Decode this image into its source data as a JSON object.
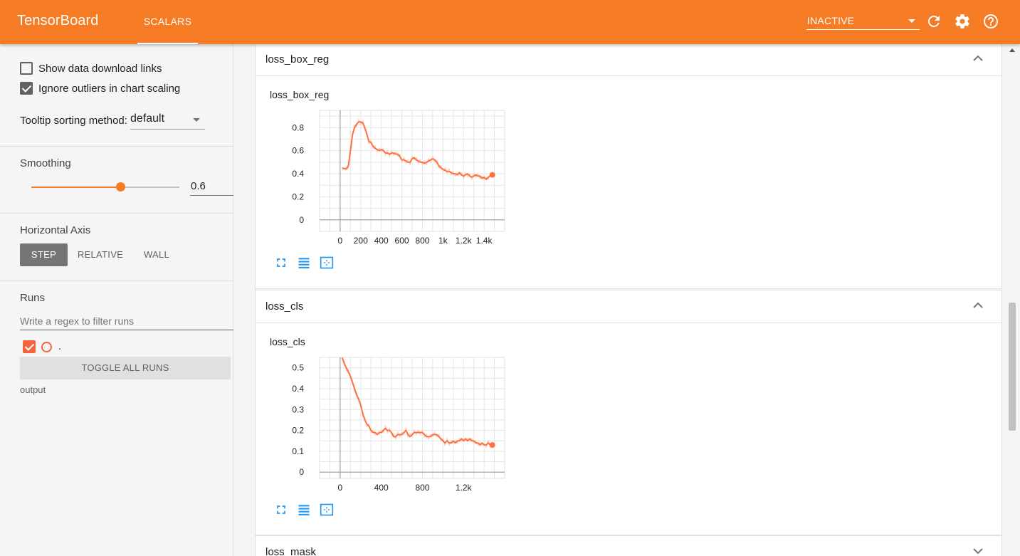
{
  "header": {
    "brand": "TensorBoard",
    "active_tab": "SCALARS",
    "status_select": "INACTIVE",
    "icons": [
      "refresh-icon",
      "gear-icon",
      "help-icon"
    ]
  },
  "sidebar": {
    "show_download_links": {
      "label": "Show data download links",
      "checked": false
    },
    "ignore_outliers": {
      "label": "Ignore outliers in chart scaling",
      "checked": true
    },
    "tooltip_sorting_label": "Tooltip sorting method:",
    "tooltip_sorting_value": "default",
    "smoothing_title": "Smoothing",
    "smoothing_value": "0.6",
    "smoothing_fraction": 0.6,
    "horizontal_axis_title": "Horizontal Axis",
    "axis_buttons": {
      "step": "STEP",
      "relative": "RELATIVE",
      "wall": "WALL"
    },
    "axis_selected": "STEP",
    "runs_title": "Runs",
    "runs_filter_placeholder": "Write a regex to filter runs",
    "run_name": ".",
    "toggle_all_label": "TOGGLE ALL RUNS",
    "output_label": "output"
  },
  "cards": [
    {
      "title": "loss_box_reg",
      "chart_title": "loss_box_reg",
      "expanded": true
    },
    {
      "title": "loss_cls",
      "chart_title": "loss_cls",
      "expanded": true
    },
    {
      "title": "loss_mask",
      "expanded": false
    }
  ],
  "colors": {
    "accent": "#f57c24",
    "series": "#ff7043",
    "raw_series": "#fbd0c3"
  },
  "chart_data": [
    {
      "type": "line",
      "title": "loss_box_reg",
      "xlim": [
        -200,
        1600
      ],
      "ylim": [
        -0.1,
        0.95
      ],
      "x_ticks": [
        0,
        200,
        400,
        600,
        800,
        1000,
        1200,
        1400
      ],
      "x_tick_labels": [
        "0",
        "200",
        "400",
        "600",
        "800",
        "1k",
        "1.2k",
        "1.4k"
      ],
      "y_ticks": [
        0,
        0.2,
        0.4,
        0.6,
        0.8
      ],
      "y_tick_labels": [
        "0",
        "0.2",
        "0.4",
        "0.6",
        "0.8"
      ],
      "grid": true,
      "series": [
        {
          "x": [
            20,
            60,
            80,
            100,
            120,
            140,
            160,
            180,
            200,
            220,
            240,
            260,
            280,
            300,
            320,
            340,
            360,
            380,
            400,
            420,
            440,
            460,
            480,
            500,
            520,
            540,
            560,
            580,
            600,
            620,
            640,
            660,
            680,
            700,
            720,
            740,
            760,
            780,
            800,
            820,
            840,
            860,
            880,
            900,
            920,
            940,
            960,
            980,
            1000,
            1020,
            1040,
            1060,
            1080,
            1100,
            1120,
            1140,
            1160,
            1180,
            1200,
            1220,
            1240,
            1260,
            1280,
            1300,
            1320,
            1340,
            1360,
            1380,
            1400,
            1420,
            1440,
            1460,
            1480
          ],
          "y": [
            0.45,
            0.44,
            0.47,
            0.6,
            0.74,
            0.8,
            0.83,
            0.85,
            0.85,
            0.84,
            0.8,
            0.74,
            0.68,
            0.67,
            0.64,
            0.62,
            0.61,
            0.6,
            0.61,
            0.6,
            0.58,
            0.58,
            0.57,
            0.58,
            0.58,
            0.57,
            0.57,
            0.55,
            0.52,
            0.52,
            0.51,
            0.5,
            0.5,
            0.53,
            0.54,
            0.52,
            0.51,
            0.5,
            0.5,
            0.49,
            0.5,
            0.51,
            0.52,
            0.53,
            0.52,
            0.5,
            0.47,
            0.45,
            0.44,
            0.43,
            0.42,
            0.42,
            0.41,
            0.4,
            0.4,
            0.39,
            0.41,
            0.39,
            0.38,
            0.39,
            0.4,
            0.38,
            0.37,
            0.38,
            0.39,
            0.38,
            0.38,
            0.36,
            0.37,
            0.35,
            0.37,
            0.38,
            0.39
          ]
        }
      ]
    },
    {
      "type": "line",
      "title": "loss_cls",
      "xlim": [
        -200,
        1600
      ],
      "ylim": [
        -0.03,
        0.55
      ],
      "x_ticks": [
        0,
        400,
        800,
        1200
      ],
      "x_tick_labels": [
        "0",
        "400",
        "800",
        "1.2k"
      ],
      "y_ticks": [
        0,
        0.1,
        0.2,
        0.3,
        0.4,
        0.5
      ],
      "y_tick_labels": [
        "0",
        "0.1",
        "0.2",
        "0.3",
        "0.4",
        "0.5"
      ],
      "grid": true,
      "series": [
        {
          "x": [
            20,
            40,
            60,
            80,
            100,
            120,
            140,
            160,
            180,
            200,
            220,
            240,
            260,
            280,
            300,
            320,
            340,
            360,
            380,
            400,
            420,
            440,
            460,
            480,
            500,
            520,
            540,
            560,
            580,
            600,
            620,
            640,
            660,
            680,
            700,
            720,
            740,
            760,
            780,
            800,
            820,
            840,
            860,
            880,
            900,
            920,
            940,
            960,
            980,
            1000,
            1020,
            1040,
            1060,
            1080,
            1100,
            1120,
            1140,
            1160,
            1180,
            1200,
            1220,
            1240,
            1260,
            1280,
            1300,
            1320,
            1340,
            1360,
            1380,
            1400,
            1420,
            1440,
            1460,
            1480
          ],
          "y": [
            0.55,
            0.52,
            0.5,
            0.48,
            0.46,
            0.43,
            0.4,
            0.37,
            0.35,
            0.32,
            0.28,
            0.25,
            0.23,
            0.22,
            0.2,
            0.19,
            0.19,
            0.18,
            0.19,
            0.19,
            0.2,
            0.21,
            0.2,
            0.2,
            0.19,
            0.17,
            0.17,
            0.18,
            0.18,
            0.18,
            0.19,
            0.2,
            0.18,
            0.17,
            0.18,
            0.19,
            0.19,
            0.19,
            0.19,
            0.19,
            0.18,
            0.17,
            0.17,
            0.17,
            0.18,
            0.18,
            0.18,
            0.17,
            0.16,
            0.15,
            0.14,
            0.15,
            0.14,
            0.14,
            0.15,
            0.14,
            0.15,
            0.15,
            0.16,
            0.15,
            0.16,
            0.15,
            0.16,
            0.15,
            0.15,
            0.14,
            0.14,
            0.13,
            0.14,
            0.13,
            0.13,
            0.14,
            0.13,
            0.13
          ]
        }
      ]
    }
  ]
}
